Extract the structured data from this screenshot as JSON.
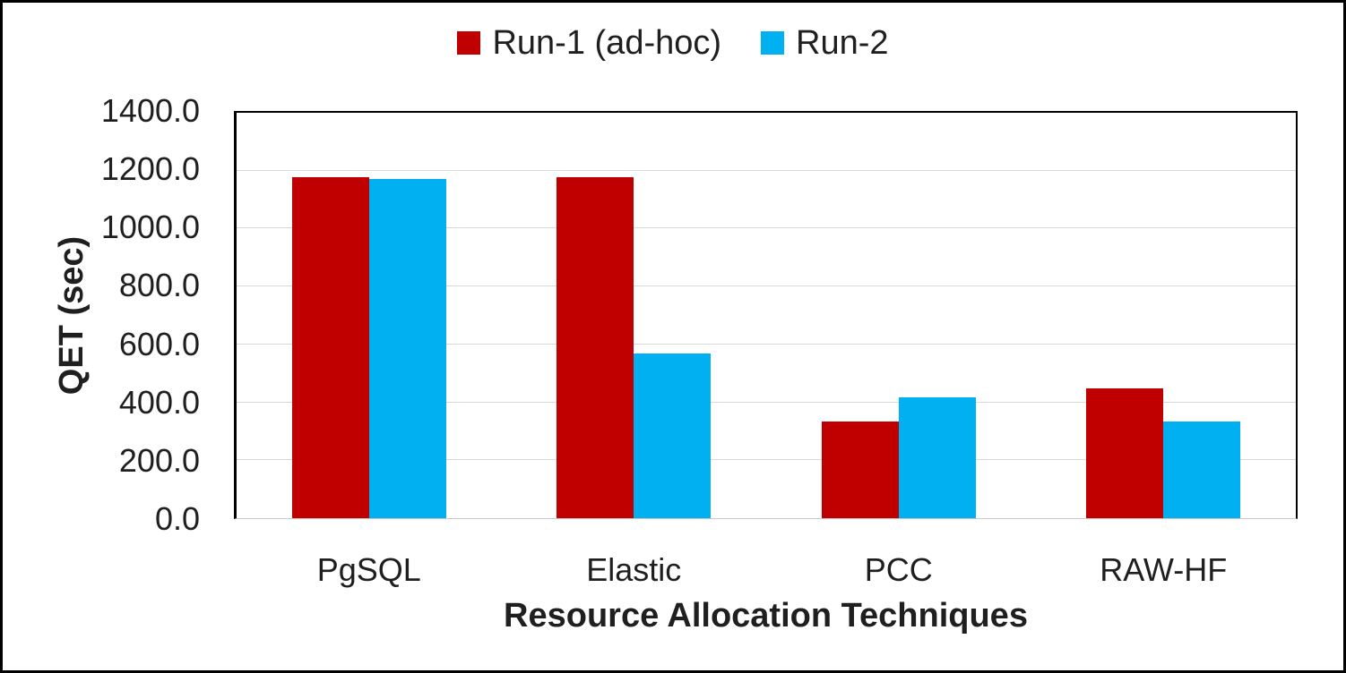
{
  "chart_data": {
    "type": "bar",
    "title": "",
    "xlabel": "Resource Allocation Techniques",
    "ylabel": "QET (sec)",
    "categories": [
      "PgSQL",
      "Elastic",
      "PCC",
      "RAW-HF"
    ],
    "series": [
      {
        "name": "Run-1 (ad-hoc)",
        "color": "#C00000",
        "values": [
          1176,
          1176,
          333,
          449
        ]
      },
      {
        "name": "Run-2",
        "color": "#00B0F0",
        "values": [
          1171,
          568,
          418,
          333
        ]
      }
    ],
    "ylim": [
      0,
      1400
    ],
    "ytick_step": 200,
    "ytick_labels": [
      "0.0",
      "200.0",
      "400.0",
      "600.0",
      "800.0",
      "1000.0",
      "1200.0",
      "1400.0"
    ],
    "legend_position": "top-center",
    "grid": true,
    "gridline_color": "#D9D9D9",
    "axis_line_color": "#000000",
    "text_color": "#1F1F1F",
    "frame_border_color": "#000000"
  }
}
